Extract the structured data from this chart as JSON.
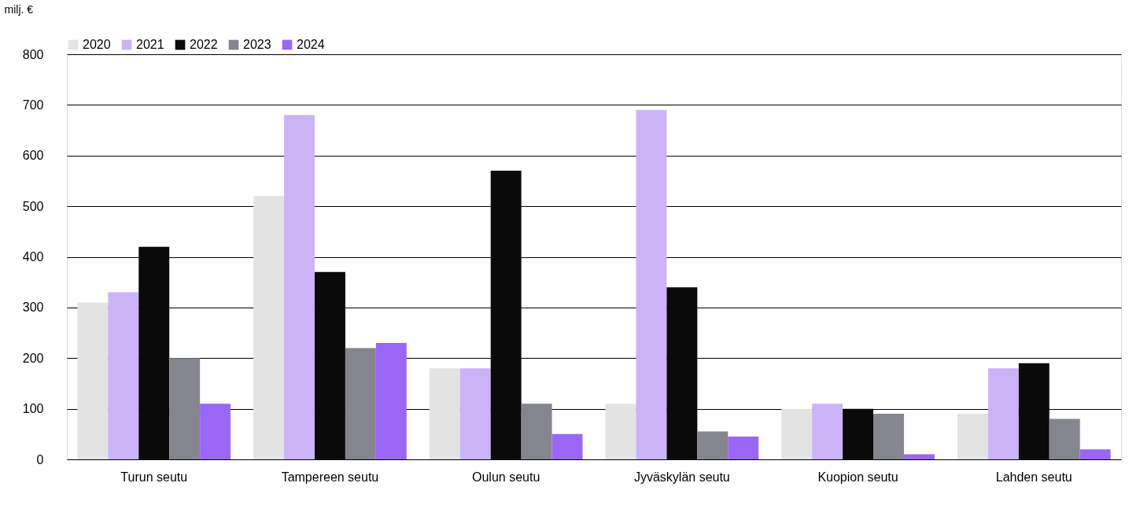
{
  "chart_data": {
    "type": "bar",
    "ylabel": "milj. €",
    "categories": [
      "Turun seutu",
      "Tampereen seutu",
      "Oulun seutu",
      "Jyväskylän seutu",
      "Kuopion seutu",
      "Lahden seutu"
    ],
    "series": [
      {
        "name": "2020",
        "color": "#e3e3e3",
        "values": [
          310,
          520,
          180,
          110,
          100,
          90
        ]
      },
      {
        "name": "2021",
        "color": "#cbb3f7",
        "values": [
          330,
          680,
          180,
          690,
          110,
          180
        ]
      },
      {
        "name": "2022",
        "color": "#0a0a0a",
        "values": [
          420,
          370,
          570,
          340,
          100,
          190
        ]
      },
      {
        "name": "2023",
        "color": "#85858f",
        "values": [
          200,
          220,
          110,
          55,
          90,
          80
        ]
      },
      {
        "name": "2024",
        "color": "#9b66f5",
        "values": [
          110,
          230,
          50,
          45,
          10,
          20
        ]
      }
    ],
    "ylim": [
      0,
      800
    ],
    "yticks": [
      0,
      100,
      200,
      300,
      400,
      500,
      600,
      700,
      800
    ],
    "grid": "y",
    "legend": "top"
  }
}
